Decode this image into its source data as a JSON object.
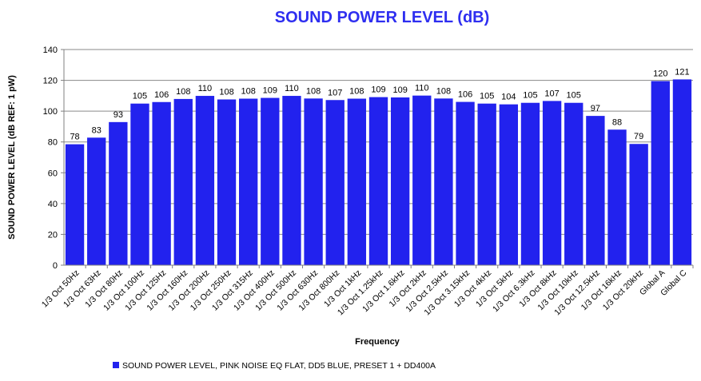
{
  "colors": {
    "bar": "#2222ee",
    "title": "#2e2ef0",
    "grid": "#8a8a8a",
    "axis": "#808080"
  },
  "chart_data": {
    "type": "bar",
    "title": "SOUND POWER LEVEL (dB)",
    "xlabel": "Frequency",
    "ylabel": "SOUND POWER LEVEL (dB REF: 1 pW)",
    "ylim": [
      0,
      140
    ],
    "yticks": [
      0,
      20,
      40,
      60,
      80,
      100,
      120,
      140
    ],
    "grid": true,
    "legend_position": "bottom-left",
    "categories": [
      "1/3 Oct 50Hz",
      "1/3 Oct 63Hz",
      "1/3 Oct 80Hz",
      "1/3 Oct 100Hz",
      "1/3 Oct 125Hz",
      "1/3 Oct 160Hz",
      "1/3 Oct 200Hz",
      "1/3 Oct 250Hz",
      "1/3 Oct 315Hz",
      "1/3 Oct 400Hz",
      "1/3 Oct 500Hz",
      "1/3 Oct 630Hz",
      "1/3 Oct 800Hz",
      "1/3 Oct 1kHz",
      "1/3 Oct 1.25kHz",
      "1/3 Oct 1.6kHz",
      "1/3 Oct 2kHz",
      "1/3 Oct 2.5kHz",
      "1/3 Oct 3.15kHz",
      "1/3 Oct 4kHz",
      "1/3 Oct 5kHz",
      "1/3 Oct 6.3kHz",
      "1/3 Oct 8kHz",
      "1/3 Oct 10kHz",
      "1/3 Oct 12.5kHz",
      "1/3 Oct 16kHz",
      "1/3 Oct 20kHz",
      "Global A",
      "Global C"
    ],
    "series": [
      {
        "name": "SOUND POWER LEVEL, PINK NOISE EQ FLAT, DD5 BLUE, PRESET 1 + DD400A",
        "values": [
          78.5,
          82.8,
          92.9,
          104.9,
          105.9,
          107.9,
          109.9,
          107.6,
          108.1,
          108.6,
          109.9,
          108.2,
          107.2,
          108.1,
          109.1,
          108.9,
          110.1,
          108.2,
          106.0,
          104.9,
          104.4,
          105.4,
          106.6,
          105.4,
          96.9,
          88.0,
          78.7,
          119.5,
          120.6
        ],
        "labels": [
          "78",
          "83",
          "93",
          "105",
          "106",
          "108",
          "110",
          "108",
          "108",
          "109",
          "110",
          "108",
          "107",
          "108",
          "109",
          "109",
          "110",
          "108",
          "106",
          "105",
          "104",
          "105",
          "107",
          "105",
          "97",
          "88",
          "79",
          "120",
          "121"
        ]
      }
    ]
  }
}
